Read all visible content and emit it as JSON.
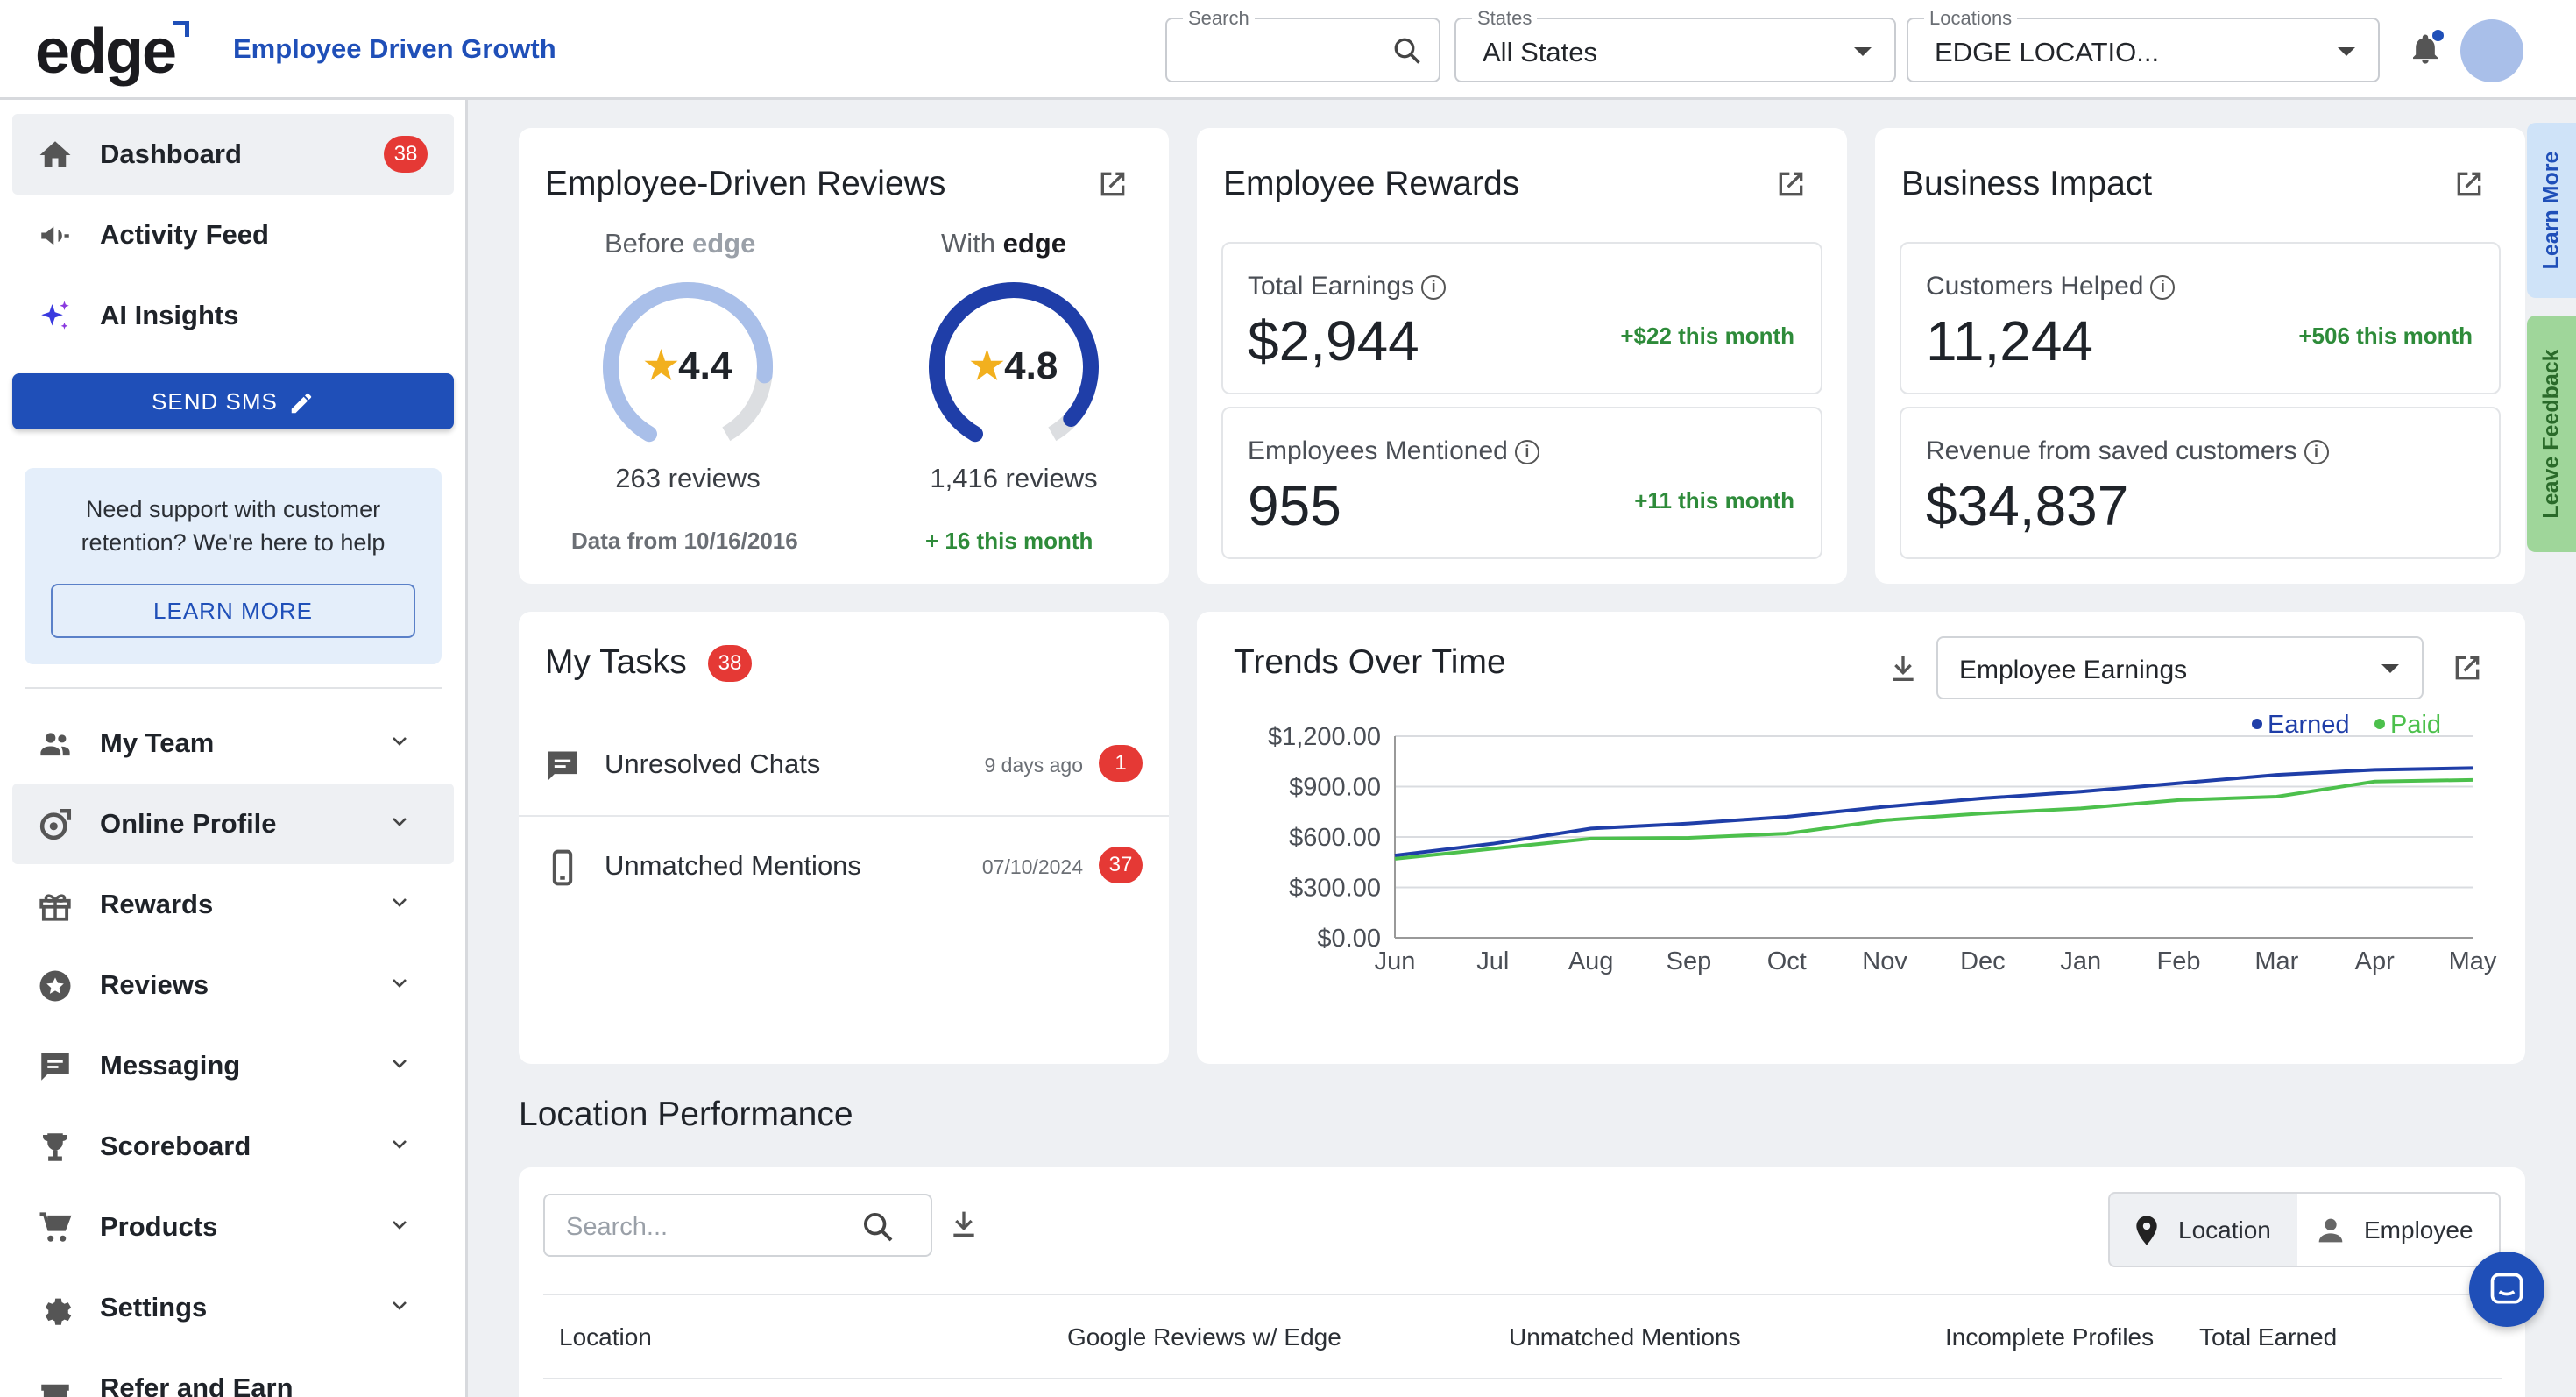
{
  "header": {
    "logo": "edge",
    "tagline": "Employee Driven Growth",
    "search": {
      "label": "Search",
      "value": ""
    },
    "states": {
      "label": "States",
      "value": "All States"
    },
    "locations": {
      "label": "Locations",
      "value": "EDGE LOCATIO..."
    }
  },
  "sidebar": {
    "items": [
      {
        "label": "Dashboard",
        "badge": "38",
        "icon": "home-icon"
      },
      {
        "label": "Activity Feed",
        "icon": "megaphone-icon"
      },
      {
        "label": "AI Insights",
        "icon": "sparkle-icon"
      },
      {
        "label": "My Team",
        "icon": "team-icon"
      },
      {
        "label": "Online Profile",
        "icon": "profile-edit-icon"
      },
      {
        "label": "Rewards",
        "icon": "gift-icon"
      },
      {
        "label": "Reviews",
        "icon": "star-circle-icon"
      },
      {
        "label": "Messaging",
        "icon": "message-icon"
      },
      {
        "label": "Scoreboard",
        "icon": "trophy-icon"
      },
      {
        "label": "Products",
        "icon": "cart-icon"
      },
      {
        "label": "Settings",
        "icon": "gear-icon"
      },
      {
        "label": "Refer and Earn",
        "icon": "refer-icon"
      }
    ],
    "send_sms": "SEND SMS",
    "support_message": "Need support with customer retention? We're here to help",
    "learn_more": "LEARN MORE"
  },
  "reviews_card": {
    "title": "Employee-Driven Reviews",
    "before": {
      "label": "Before",
      "brand": "edge",
      "rating": "4.4",
      "count": "263 reviews",
      "note": "Data from 10/16/2016",
      "fill": 0.82
    },
    "with": {
      "label": "With",
      "brand": "edge",
      "rating": "4.8",
      "count": "1,416 reviews",
      "note": "+ 16 this month",
      "fill": 0.94
    }
  },
  "rewards_card": {
    "title": "Employee Rewards",
    "total_earnings": {
      "label": "Total Earnings",
      "value": "$2,944",
      "delta": "+$22 this month"
    },
    "employees_mentioned": {
      "label": "Employees Mentioned",
      "value": "955",
      "delta": "+11 this month"
    }
  },
  "impact_card": {
    "title": "Business Impact",
    "customers_helped": {
      "label": "Customers Helped",
      "value": "11,244",
      "delta": "+506 this month"
    },
    "revenue_saved": {
      "label": "Revenue from saved customers",
      "value": "$34,837"
    }
  },
  "tasks_card": {
    "title": "My Tasks",
    "badge": "38",
    "items": [
      {
        "name": "Unresolved Chats",
        "when": "9 days ago",
        "badge": "1"
      },
      {
        "name": "Unmatched Mentions",
        "when": "07/10/2024",
        "badge": "37"
      }
    ]
  },
  "trends_card": {
    "title": "Trends Over Time",
    "selector": "Employee Earnings"
  },
  "chart_data": {
    "type": "line",
    "x": [
      "Jun",
      "Jul",
      "Aug",
      "Sep",
      "Oct",
      "Nov",
      "Dec",
      "Jan",
      "Feb",
      "Mar",
      "Apr",
      "May"
    ],
    "y_ticks": [
      "$1,200.00",
      "$900.00",
      "$600.00",
      "$300.00",
      "$0.00"
    ],
    "ylim": [
      0,
      1200
    ],
    "grid": true,
    "legend_position": "top-right",
    "series": [
      {
        "name": "Earned",
        "color": "#1f3ea8",
        "values": [
          490,
          560,
          650,
          680,
          720,
          780,
          830,
          870,
          920,
          970,
          1000,
          1010
        ]
      },
      {
        "name": "Paid",
        "color": "#4cc04c",
        "values": [
          470,
          530,
          590,
          595,
          620,
          700,
          740,
          770,
          820,
          840,
          930,
          940
        ]
      }
    ]
  },
  "location_performance": {
    "title": "Location Performance",
    "search_placeholder": "Search...",
    "toggle": {
      "location": "Location",
      "employee": "Employee"
    },
    "columns": [
      "Location",
      "Google Reviews w/ Edge",
      "Unmatched Mentions",
      "Incomplete Profiles",
      "Total Earned"
    ]
  },
  "side_tabs": {
    "learn_more": "Learn More",
    "leave_feedback": "Leave Feedback"
  }
}
